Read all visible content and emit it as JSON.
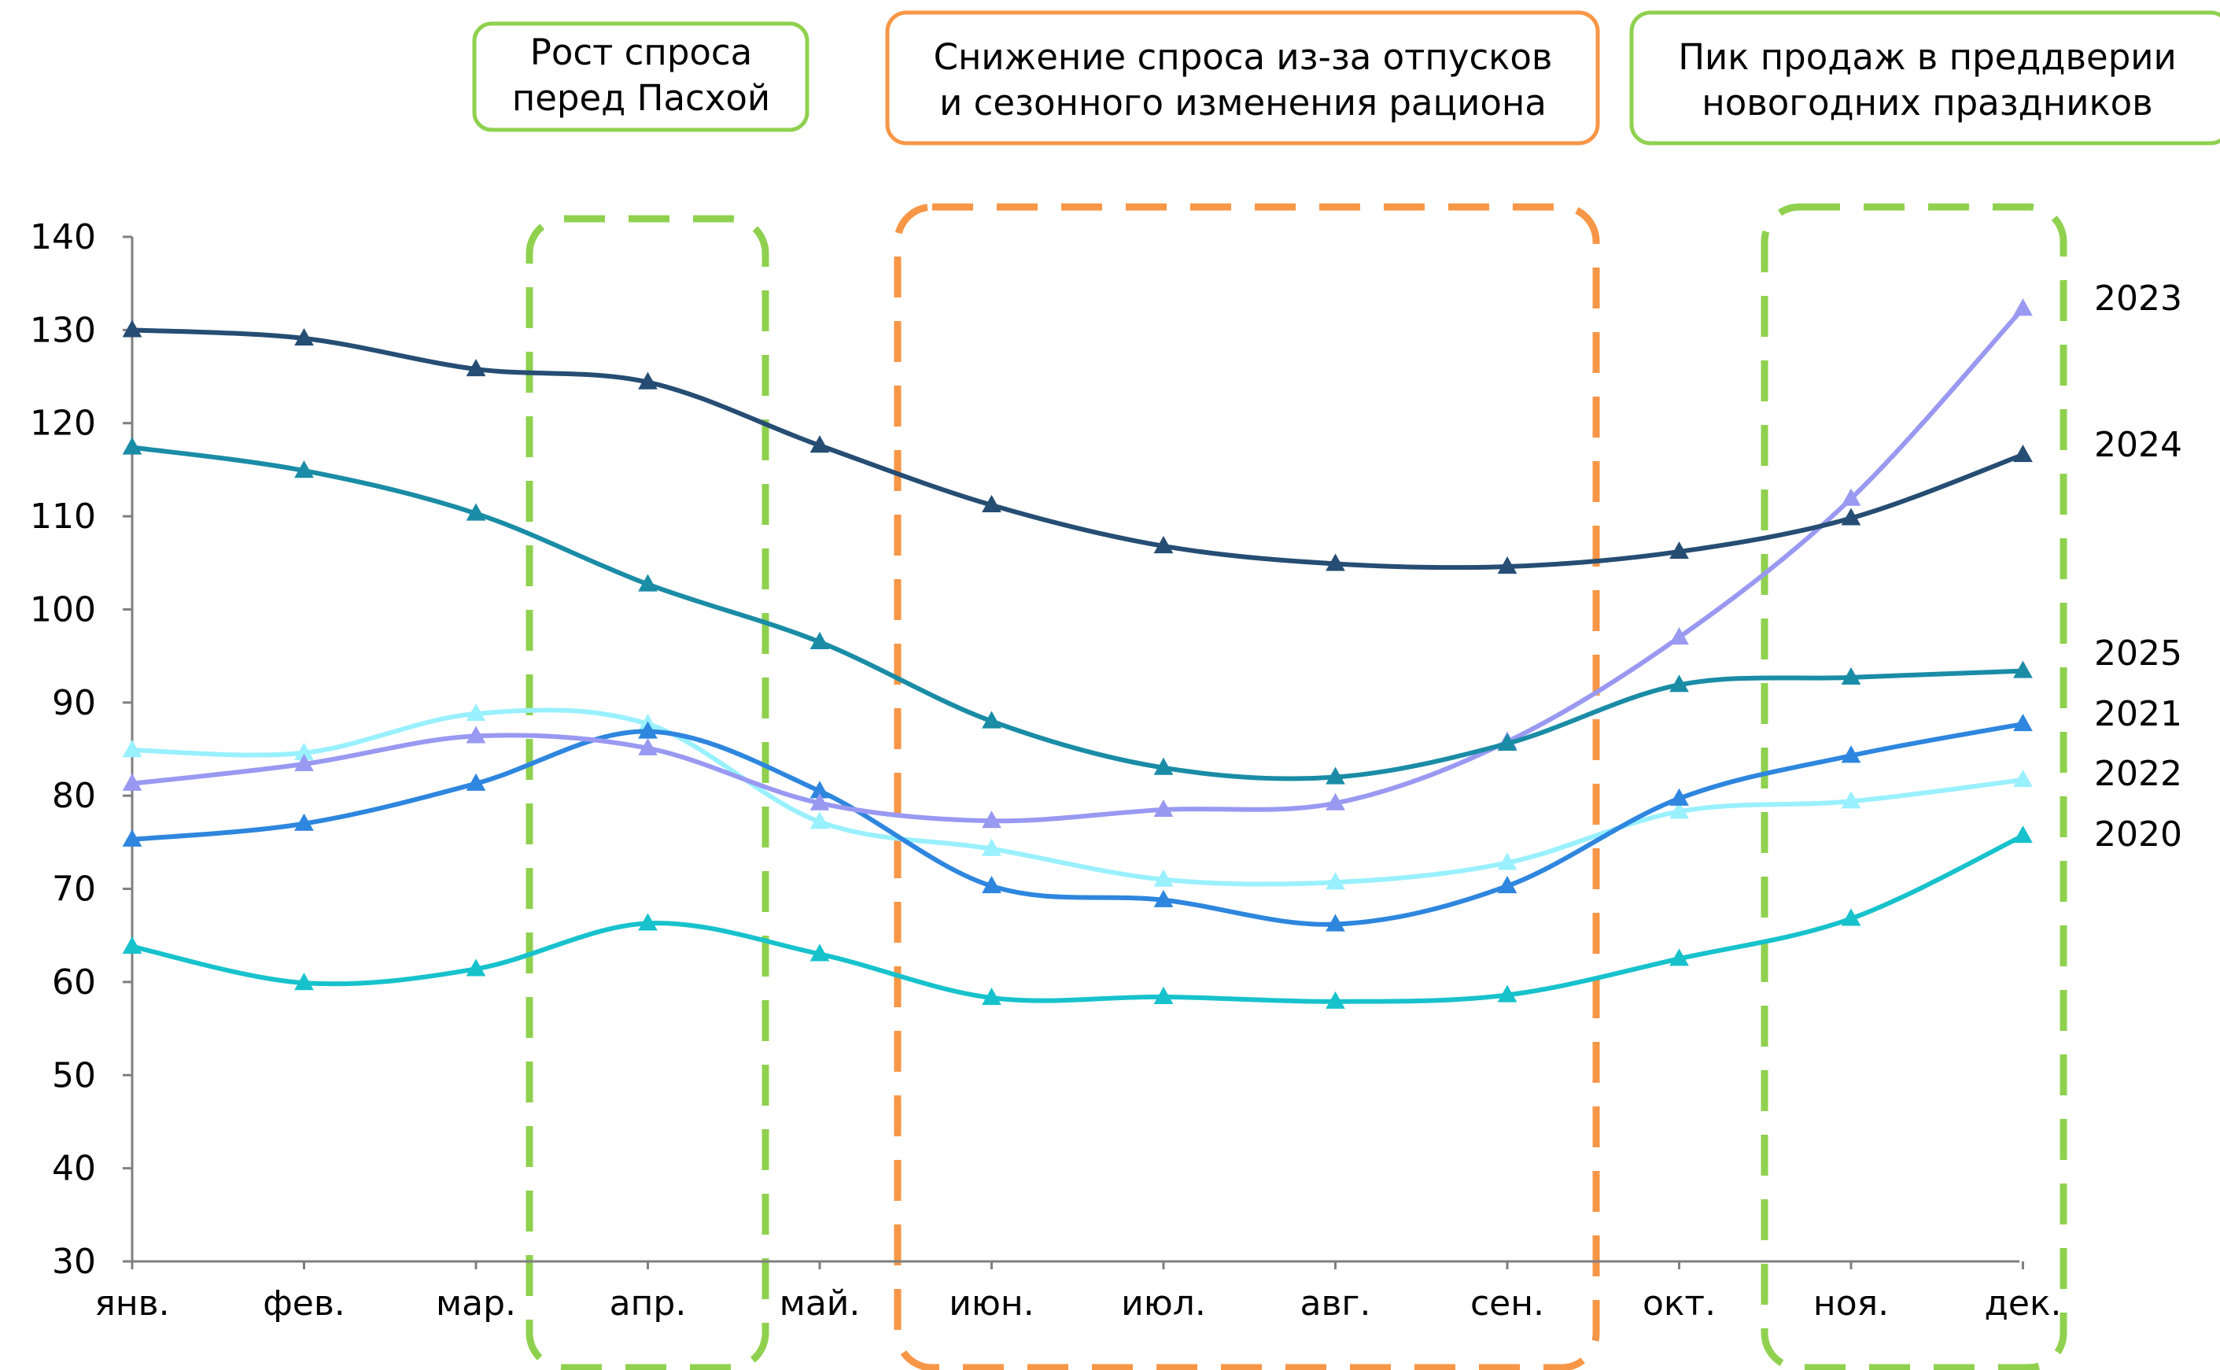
{
  "chart_data": {
    "type": "line",
    "title": "",
    "xlabel": "",
    "ylabel": "",
    "categories": [
      "янв.",
      "фев.",
      "мар.",
      "апр.",
      "май.",
      "июн.",
      "июл.",
      "авг.",
      "сен.",
      "окт.",
      "ноя.",
      "дек."
    ],
    "ylim": [
      30,
      140
    ],
    "yticks": [
      "30",
      "40",
      "50",
      "60",
      "70",
      "80",
      "90",
      "100",
      "110",
      "120",
      "130",
      "140"
    ],
    "grid": false,
    "marker": "triangle",
    "series": [
      {
        "name": "2023",
        "color": "#9999f2",
        "values": [
          81.3,
          83.4,
          86.4,
          85.1,
          79.2,
          77.3,
          78.5,
          79.2,
          85.8,
          97.0,
          111.9,
          132.3
        ]
      },
      {
        "name": "2024",
        "color": "#264d73",
        "values": [
          130.0,
          129.1,
          125.8,
          124.4,
          117.6,
          111.2,
          106.8,
          104.9,
          104.6,
          106.2,
          109.8,
          116.6
        ]
      },
      {
        "name": "2025",
        "color": "#1a8ca6",
        "values": [
          117.4,
          114.9,
          110.3,
          102.7,
          96.5,
          88.0,
          83.0,
          82.0,
          85.6,
          91.9,
          92.7,
          93.4
        ]
      },
      {
        "name": "2021",
        "color": "#2e86de",
        "values": [
          75.3,
          77.0,
          81.3,
          86.9,
          80.5,
          70.3,
          68.8,
          66.2,
          70.3,
          79.7,
          84.3,
          87.7
        ]
      },
      {
        "name": "2022",
        "color": "#99f0ff",
        "values": [
          84.9,
          84.6,
          88.8,
          87.7,
          77.2,
          74.3,
          71.0,
          70.7,
          72.8,
          78.3,
          79.4,
          81.7
        ]
      },
      {
        "name": "2020",
        "color": "#17c2cc",
        "values": [
          63.8,
          59.9,
          61.4,
          66.3,
          63.0,
          58.3,
          58.4,
          57.9,
          58.6,
          62.5,
          66.8,
          75.7
        ]
      }
    ],
    "annotations": [
      {
        "lines": [
          "Рост спроса",
          "перед Пасхой"
        ],
        "color": "#8fd14f"
      },
      {
        "lines": [
          "Снижение спроса из-за отпусков",
          "и сезонного изменения рациона"
        ],
        "color": "#f79646"
      },
      {
        "lines": [
          "Пик продаж в преддверии",
          "новогодних праздников"
        ],
        "color": "#8fd14f"
      }
    ],
    "highlight_ranges": [
      {
        "from": "апр.",
        "to": "апр.",
        "color": "#8fd14f"
      },
      {
        "from": "июн.",
        "to": "сен.",
        "color": "#f79646"
      },
      {
        "from": "ноя.",
        "to": "дек.",
        "color": "#8fd14f"
      }
    ]
  }
}
